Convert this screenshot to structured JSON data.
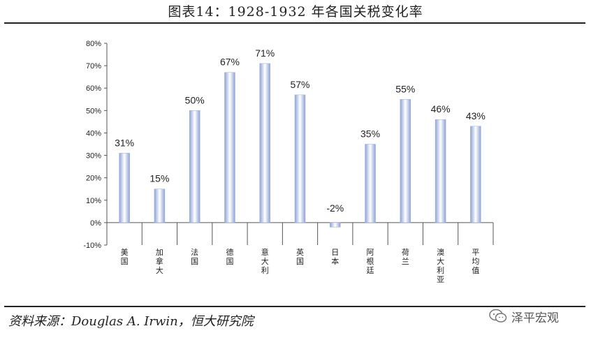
{
  "header": {
    "title": "图表14：1928-1932 年各国关税变化率"
  },
  "footer": {
    "source": "资料来源：Douglas  A.  Irwin，恒大研究院",
    "watermark": "泽平宏观"
  },
  "chart_data": {
    "type": "bar",
    "categories": [
      "美国",
      "加拿大",
      "法国",
      "德国",
      "意大利",
      "英国",
      "日本",
      "阿根廷",
      "荷兰",
      "澳大利亚",
      "平均值"
    ],
    "values": [
      31,
      15,
      50,
      67,
      71,
      57,
      -2,
      35,
      55,
      46,
      43
    ],
    "data_labels": [
      "31%",
      "15%",
      "50%",
      "67%",
      "71%",
      "57%",
      "-2%",
      "35%",
      "55%",
      "46%",
      "43%"
    ],
    "ylim": [
      -10,
      80
    ],
    "yticks": [
      -10,
      0,
      10,
      20,
      30,
      40,
      50,
      60,
      70,
      80
    ],
    "ytick_labels": [
      "-10%",
      "0%",
      "10%",
      "20%",
      "30%",
      "40%",
      "50%",
      "60%",
      "70%",
      "80%"
    ],
    "grid": false,
    "legend": "none",
    "bar_color_edge": "#8ea3d6",
    "bar_color_center": "#ffffff"
  }
}
